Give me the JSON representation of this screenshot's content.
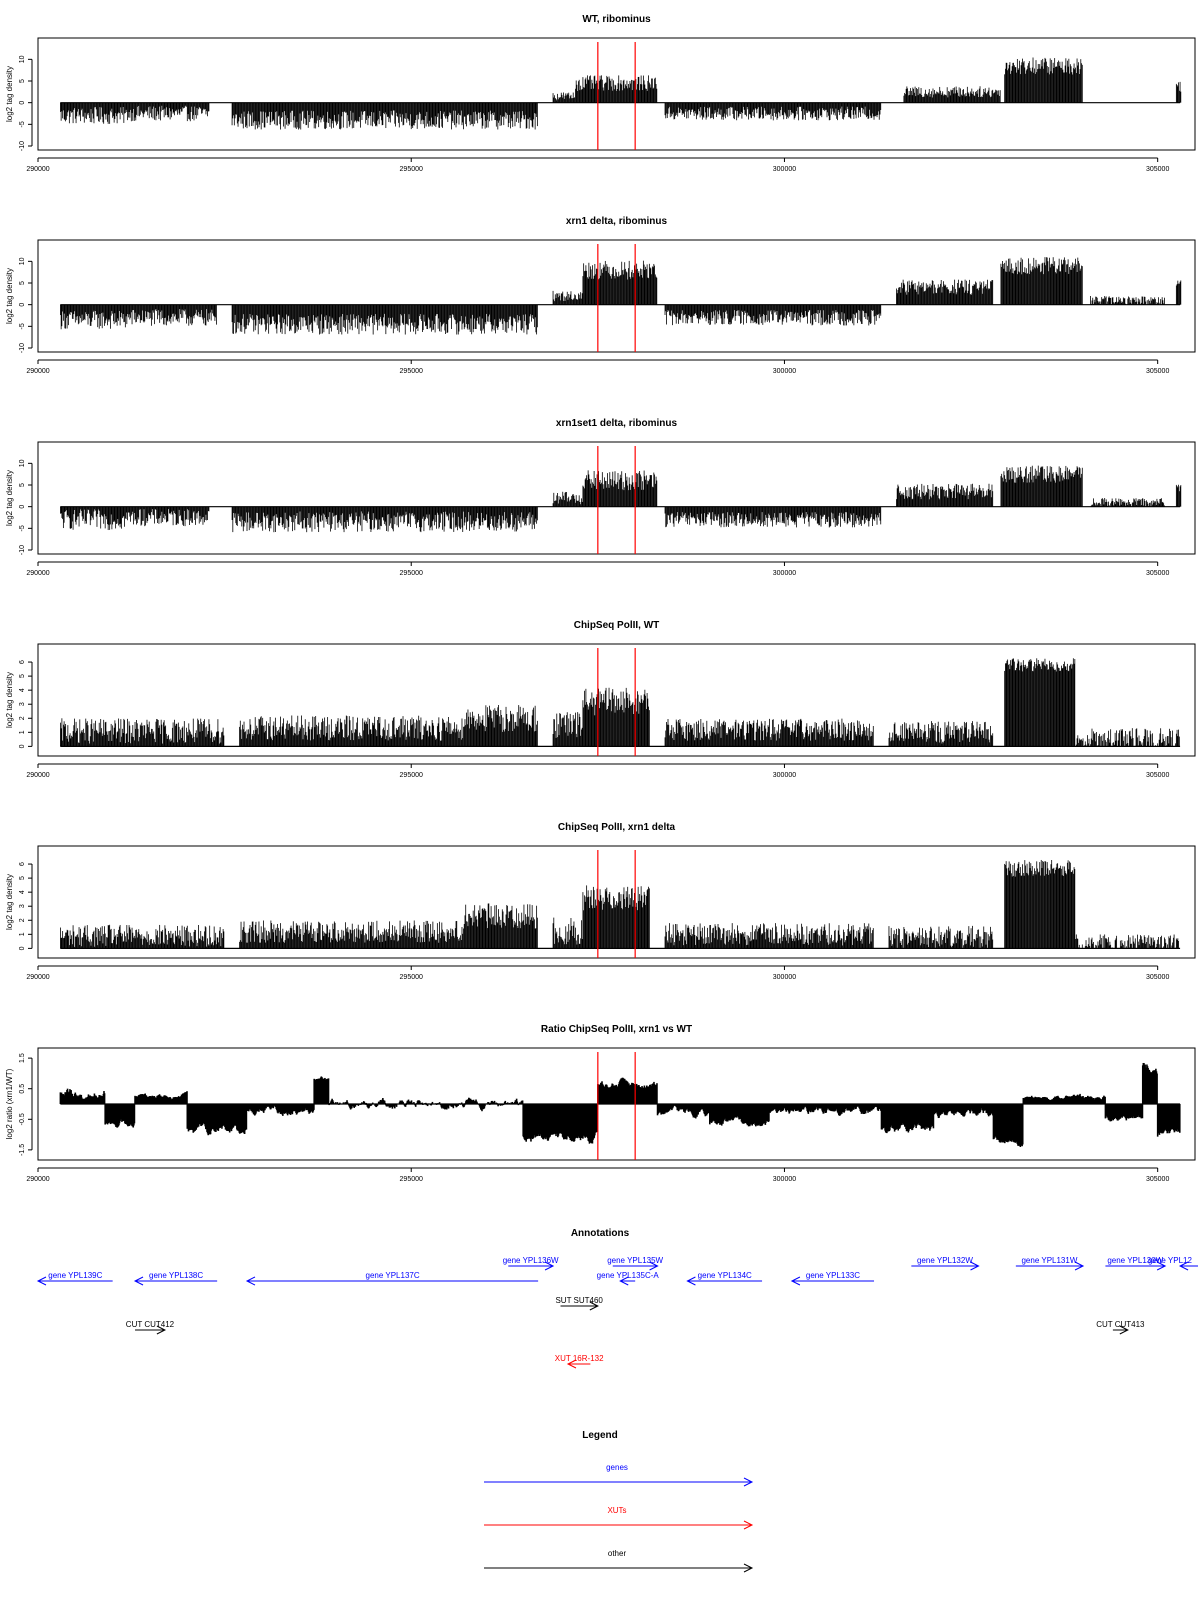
{
  "chart_data": [
    {
      "type": "bar",
      "title": "WT, ribominus",
      "ylabel": "log2 tag density",
      "xlim": [
        290000,
        305500
      ],
      "ylim": [
        -10,
        14
      ],
      "yticks": [
        -10,
        -5,
        0,
        5,
        10
      ],
      "xticks": [
        290000,
        295000,
        300000,
        305000
      ],
      "markers": [
        297500,
        298000
      ],
      "segments": [
        {
          "start": 290300,
          "end": 291200,
          "value": -3.0,
          "noise": 2.0
        },
        {
          "start": 291200,
          "end": 292300,
          "value": -2.5,
          "noise": 1.8
        },
        {
          "start": 292600,
          "end": 296700,
          "value": -4.0,
          "noise": 2.2
        },
        {
          "start": 296900,
          "end": 297200,
          "value": 1.5,
          "noise": 1.0
        },
        {
          "start": 297200,
          "end": 298300,
          "value": 4.5,
          "noise": 1.8
        },
        {
          "start": 298400,
          "end": 301300,
          "value": -2.5,
          "noise": 1.6
        },
        {
          "start": 301600,
          "end": 302900,
          "value": 2.5,
          "noise": 1.3
        },
        {
          "start": 302950,
          "end": 304000,
          "value": 8.5,
          "noise": 2.0
        },
        {
          "start": 305250,
          "end": 305320,
          "value": 4.0,
          "noise": 1.5
        }
      ]
    },
    {
      "type": "bar",
      "title": "xrn1 delta, ribominus",
      "ylabel": "log2 tag density",
      "xlim": [
        290000,
        305500
      ],
      "ylim": [
        -10,
        14
      ],
      "yticks": [
        -10,
        -5,
        0,
        5,
        10
      ],
      "xticks": [
        290000,
        295000,
        300000,
        305000
      ],
      "markers": [
        297500,
        298000
      ],
      "segments": [
        {
          "start": 290300,
          "end": 291200,
          "value": -3.5,
          "noise": 2.2
        },
        {
          "start": 291200,
          "end": 292400,
          "value": -3.0,
          "noise": 2.0
        },
        {
          "start": 292600,
          "end": 296700,
          "value": -4.5,
          "noise": 2.4
        },
        {
          "start": 296900,
          "end": 297300,
          "value": 2.0,
          "noise": 1.2
        },
        {
          "start": 297300,
          "end": 298300,
          "value": 8.0,
          "noise": 2.2
        },
        {
          "start": 298400,
          "end": 301300,
          "value": -3.0,
          "noise": 1.8
        },
        {
          "start": 301500,
          "end": 302800,
          "value": 4.0,
          "noise": 1.8
        },
        {
          "start": 302900,
          "end": 304000,
          "value": 9.0,
          "noise": 2.0
        },
        {
          "start": 304100,
          "end": 305100,
          "value": 1.0,
          "noise": 1.0
        },
        {
          "start": 305250,
          "end": 305320,
          "value": 5.0,
          "noise": 1.0
        }
      ]
    },
    {
      "type": "bar",
      "title": "xrn1set1 delta, ribominus",
      "ylabel": "log2 tag density",
      "xlim": [
        290000,
        305500
      ],
      "ylim": [
        -10,
        14
      ],
      "yticks": [
        -10,
        -5,
        0,
        5,
        10
      ],
      "xticks": [
        290000,
        295000,
        300000,
        305000
      ],
      "markers": [
        297500,
        298000
      ],
      "segments": [
        {
          "start": 290300,
          "end": 291200,
          "value": -3.0,
          "noise": 2.4
        },
        {
          "start": 291200,
          "end": 292300,
          "value": -2.5,
          "noise": 2.0
        },
        {
          "start": 292600,
          "end": 296700,
          "value": -3.5,
          "noise": 2.4
        },
        {
          "start": 296900,
          "end": 297300,
          "value": 2.0,
          "noise": 1.5
        },
        {
          "start": 297300,
          "end": 298300,
          "value": 6.0,
          "noise": 2.4
        },
        {
          "start": 298400,
          "end": 301300,
          "value": -3.0,
          "noise": 1.8
        },
        {
          "start": 301500,
          "end": 302800,
          "value": 3.5,
          "noise": 1.8
        },
        {
          "start": 302900,
          "end": 304000,
          "value": 7.5,
          "noise": 2.0
        },
        {
          "start": 304100,
          "end": 305100,
          "value": 1.0,
          "noise": 1.0
        },
        {
          "start": 305250,
          "end": 305320,
          "value": 4.5,
          "noise": 1.0
        }
      ]
    },
    {
      "type": "bar",
      "title": "ChipSeq PolII, WT",
      "ylabel": "log2 tag density",
      "xlim": [
        290000,
        305500
      ],
      "ylim": [
        -0.4,
        7
      ],
      "yticks": [
        0,
        1,
        2,
        3,
        4,
        5,
        6
      ],
      "xticks": [
        290000,
        295000,
        300000,
        305000
      ],
      "markers": [
        297500,
        298000
      ],
      "segments": [
        {
          "start": 290300,
          "end": 292500,
          "value": 1.1,
          "noise": 0.9
        },
        {
          "start": 292700,
          "end": 295700,
          "value": 1.3,
          "noise": 0.9
        },
        {
          "start": 295700,
          "end": 296700,
          "value": 2.0,
          "noise": 1.0
        },
        {
          "start": 296900,
          "end": 297300,
          "value": 1.5,
          "noise": 1.0
        },
        {
          "start": 297300,
          "end": 298200,
          "value": 3.2,
          "noise": 1.0
        },
        {
          "start": 298400,
          "end": 301200,
          "value": 1.2,
          "noise": 0.8
        },
        {
          "start": 301400,
          "end": 302800,
          "value": 1.0,
          "noise": 0.8
        },
        {
          "start": 302950,
          "end": 303900,
          "value": 5.8,
          "noise": 0.5
        },
        {
          "start": 303900,
          "end": 305300,
          "value": 0.5,
          "noise": 0.8
        }
      ]
    },
    {
      "type": "bar",
      "title": "ChipSeq PolII, xrn1 delta",
      "ylabel": "log2 tag density",
      "xlim": [
        290000,
        305500
      ],
      "ylim": [
        -0.4,
        7
      ],
      "yticks": [
        0,
        1,
        2,
        3,
        4,
        5,
        6
      ],
      "xticks": [
        290000,
        295000,
        300000,
        305000
      ],
      "markers": [
        297500,
        298000
      ],
      "segments": [
        {
          "start": 290300,
          "end": 292500,
          "value": 0.9,
          "noise": 0.8
        },
        {
          "start": 292700,
          "end": 295700,
          "value": 1.2,
          "noise": 0.8
        },
        {
          "start": 295700,
          "end": 296700,
          "value": 2.3,
          "noise": 0.9
        },
        {
          "start": 296900,
          "end": 297300,
          "value": 1.2,
          "noise": 1.0
        },
        {
          "start": 297300,
          "end": 298200,
          "value": 3.6,
          "noise": 0.9
        },
        {
          "start": 298400,
          "end": 301200,
          "value": 1.0,
          "noise": 0.8
        },
        {
          "start": 301400,
          "end": 302800,
          "value": 0.8,
          "noise": 0.8
        },
        {
          "start": 302950,
          "end": 303900,
          "value": 5.7,
          "noise": 0.6
        },
        {
          "start": 303900,
          "end": 305300,
          "value": 0.4,
          "noise": 0.6
        }
      ]
    },
    {
      "type": "area",
      "title": "Ratio ChipSeq PolII, xrn1 vs WT",
      "ylabel": "log2 ratio (xrn1/WT)",
      "xlim": [
        290000,
        305500
      ],
      "ylim": [
        -1.7,
        1.7
      ],
      "yticks": [
        -1.5,
        -0.5,
        0.5,
        1.5
      ],
      "xticks": [
        290000,
        295000,
        300000,
        305000
      ],
      "markers": [
        297500,
        298000
      ],
      "segments": [
        {
          "start": 290300,
          "end": 290900,
          "value": 0.3,
          "noise": 0.4
        },
        {
          "start": 290900,
          "end": 291300,
          "value": -0.6,
          "noise": 0.3
        },
        {
          "start": 291300,
          "end": 292000,
          "value": 0.3,
          "noise": 0.2
        },
        {
          "start": 292000,
          "end": 292800,
          "value": -0.8,
          "noise": 0.4
        },
        {
          "start": 292800,
          "end": 293700,
          "value": -0.2,
          "noise": 0.3
        },
        {
          "start": 293700,
          "end": 293900,
          "value": 0.8,
          "noise": 0.2
        },
        {
          "start": 293900,
          "end": 296500,
          "value": 0.0,
          "noise": 0.3
        },
        {
          "start": 296500,
          "end": 297500,
          "value": -1.1,
          "noise": 0.4
        },
        {
          "start": 297500,
          "end": 298300,
          "value": 0.6,
          "noise": 0.3
        },
        {
          "start": 298300,
          "end": 299000,
          "value": -0.3,
          "noise": 0.3
        },
        {
          "start": 299000,
          "end": 299800,
          "value": -0.6,
          "noise": 0.3
        },
        {
          "start": 299800,
          "end": 301300,
          "value": -0.2,
          "noise": 0.3
        },
        {
          "start": 301300,
          "end": 302000,
          "value": -0.8,
          "noise": 0.4
        },
        {
          "start": 302000,
          "end": 302800,
          "value": -0.3,
          "noise": 0.3
        },
        {
          "start": 302800,
          "end": 303200,
          "value": -1.2,
          "noise": 0.3
        },
        {
          "start": 303200,
          "end": 304300,
          "value": 0.2,
          "noise": 0.2
        },
        {
          "start": 304300,
          "end": 304800,
          "value": -0.4,
          "noise": 0.3
        },
        {
          "start": 304800,
          "end": 305000,
          "value": 1.2,
          "noise": 0.4
        },
        {
          "start": 305000,
          "end": 305300,
          "value": -1.0,
          "noise": 0.4
        }
      ]
    }
  ],
  "annotations": {
    "title": "Annotations",
    "features": [
      {
        "label": "gene YPL139C",
        "kind": "genes",
        "start": 290000,
        "end": 291000
      },
      {
        "label": "gene YPL138C",
        "kind": "genes",
        "start": 291300,
        "end": 292400
      },
      {
        "label": "gene YPL137C",
        "kind": "genes",
        "start": 292800,
        "end": 296700
      },
      {
        "label": "gene YPL136W",
        "kind": "genes",
        "start": 296300,
        "end": 296900
      },
      {
        "label": "gene YPL135W",
        "kind": "genes",
        "start": 297700,
        "end": 298300
      },
      {
        "label": "gene YPL135C-A",
        "kind": "genes",
        "start": 297800,
        "end": 298000
      },
      {
        "label": "gene YPL134C",
        "kind": "genes",
        "start": 298700,
        "end": 299700
      },
      {
        "label": "gene YPL133C",
        "kind": "genes",
        "start": 300100,
        "end": 301200
      },
      {
        "label": "gene YPL132W",
        "kind": "genes",
        "start": 301700,
        "end": 302600
      },
      {
        "label": "gene YPL131W",
        "kind": "genes",
        "start": 303100,
        "end": 304000
      },
      {
        "label": "gene YPL130W",
        "kind": "genes",
        "start": 304300,
        "end": 305100
      },
      {
        "label": "gene YPL12",
        "kind": "genes",
        "start": 305300,
        "end": 305600
      },
      {
        "label": "SUT SUT460",
        "kind": "other",
        "start": 297000,
        "end": 297500
      },
      {
        "label": "CUT CUT412",
        "kind": "other",
        "start": 291300,
        "end": 291700
      },
      {
        "label": "CUT CUT413",
        "kind": "other",
        "start": 304400,
        "end": 304600
      },
      {
        "label": "XUT 16R-132",
        "kind": "XUTs",
        "start": 297100,
        "end": 297400
      }
    ]
  },
  "legend": {
    "title": "Legend",
    "entries": [
      {
        "label": "genes",
        "color": "#0000ff"
      },
      {
        "label": "XUTs",
        "color": "#ff0000"
      },
      {
        "label": "other",
        "color": "#000000"
      }
    ]
  },
  "colors": {
    "signal": "#000000",
    "marker": "#ff0000",
    "genes": "#0000ff",
    "XUTs": "#ff0000",
    "other": "#000000"
  }
}
